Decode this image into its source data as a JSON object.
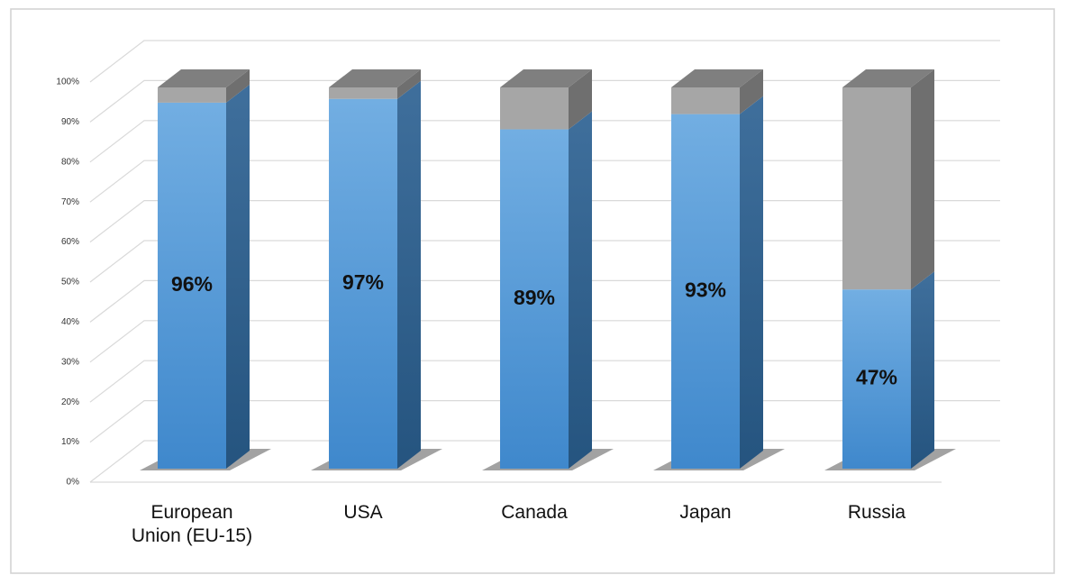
{
  "chart_data": {
    "type": "bar",
    "stacked": true,
    "categories": [
      "European Union (EU-15)",
      "USA",
      "Canada",
      "Japan",
      "Russia"
    ],
    "series": [
      {
        "color": "#4a94d6",
        "values": [
          96,
          97,
          89,
          93,
          47
        ],
        "value_labels": [
          "96%",
          "97%",
          "89%",
          "93%",
          "47%"
        ]
      },
      {
        "color": "#a6a6a6",
        "values": [
          4,
          3,
          11,
          7,
          53
        ]
      }
    ],
    "ylim": [
      0,
      100
    ],
    "yticks": [
      {
        "value": 0,
        "label": "0%"
      },
      {
        "value": 10,
        "label": "10%"
      },
      {
        "value": 20,
        "label": "20%"
      },
      {
        "value": 30,
        "label": "30%"
      },
      {
        "value": 40,
        "label": "40%"
      },
      {
        "value": 50,
        "label": "50%"
      },
      {
        "value": 60,
        "label": "60%"
      },
      {
        "value": 70,
        "label": "70%"
      },
      {
        "value": 80,
        "label": "80%"
      },
      {
        "value": 90,
        "label": "90%"
      },
      {
        "value": 100,
        "label": "100%"
      }
    ],
    "grid": true
  }
}
